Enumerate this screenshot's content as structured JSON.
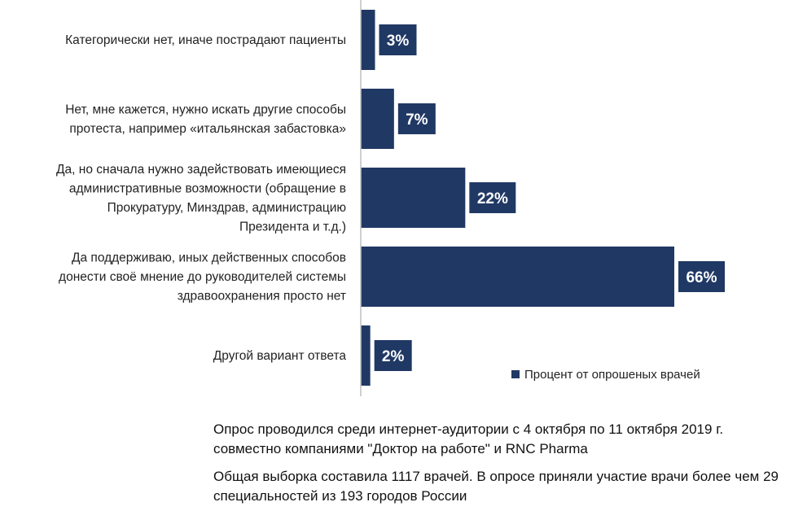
{
  "chart_data": {
    "type": "bar",
    "orientation": "horizontal",
    "categories": [
      "Категорически нет, иначе пострадают пациенты",
      "Нет, мне кажется, нужно искать другие способы протеста, например «итальянская забастовка»",
      "Да, но сначала нужно задействовать имеющиеся административные возможности (обращение в Прокуратуру, Минздрав, администрацию Президента и т.д.)",
      "Да поддерживаю, иных действенных способов донести своё мнение до руководителей системы здравоохранения просто нет",
      "Другой вариант ответа"
    ],
    "category_lines": [
      [
        "Категорически нет, иначе пострадают пациенты"
      ],
      [
        "Нет, мне кажется, нужно искать другие способы",
        "протеста, например «итальянская забастовка»"
      ],
      [
        "Да, но сначала нужно задействовать имеющиеся",
        "административные возможности (обращение в",
        "Прокуратуру, Минздрав, администрацию",
        "Президента и т.д.)"
      ],
      [
        "Да поддерживаю, иных действенных способов",
        "донести своё мнение до руководителей системы",
        "здравоохранения просто нет"
      ],
      [
        "Другой вариант ответа"
      ]
    ],
    "series": [
      {
        "name": "Процент от опрошеных врачей",
        "values": [
          3,
          7,
          22,
          66,
          2
        ],
        "labels": [
          "3%",
          "7%",
          "22%",
          "66%",
          "2%"
        ]
      }
    ],
    "xlim": [
      0,
      70
    ],
    "grid": false,
    "legend": "bottom-right",
    "colors": {
      "bar": "#203864",
      "label_bg": "#203864",
      "label_text": "#ffffff",
      "axis": "#bfbfbf"
    }
  },
  "notes": [
    "Опрос проводился среди интернет-аудитории  с 4 октября по 11 октября 2019 г. совместно компаниями \"Доктор на работе\" и RNC Pharma",
    "Общая выборка составила 1117 врачей. В опросе приняли участие врачи более чем 29 специальностей из 193 городов России"
  ]
}
